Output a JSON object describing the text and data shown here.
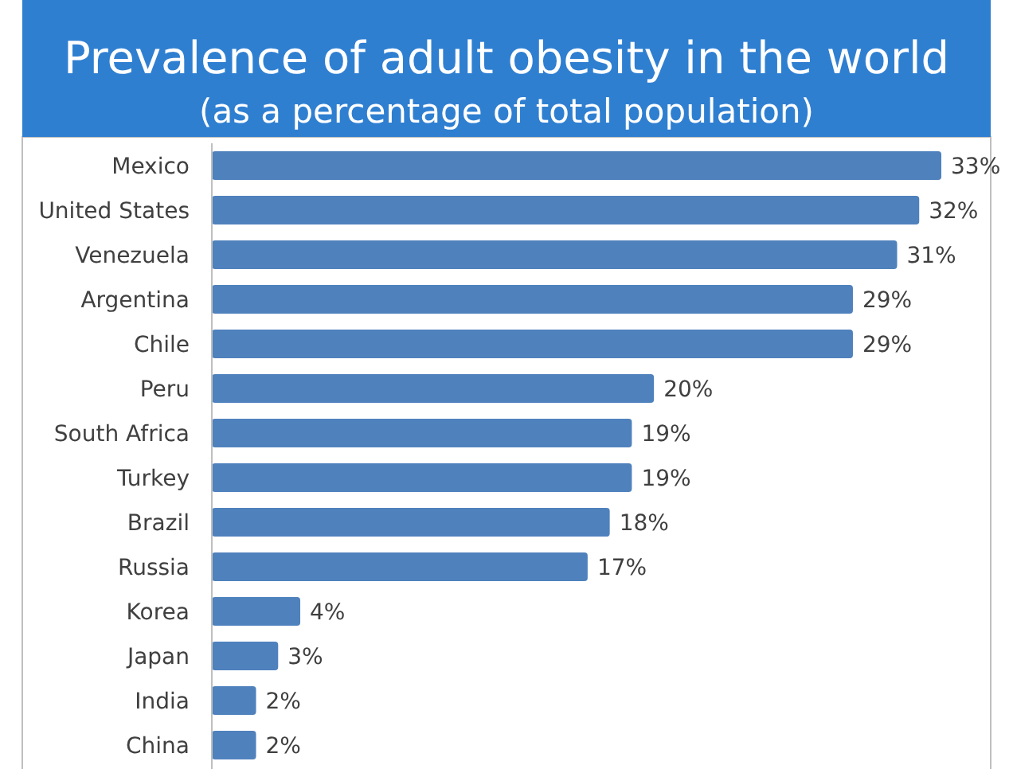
{
  "chart_data": {
    "type": "bar",
    "orientation": "horizontal",
    "title": "Prevalence of adult obesity in the world",
    "subtitle": "(as a percentage of total population)",
    "categories": [
      "Mexico",
      "United States",
      "Venezuela",
      "Argentina",
      "Chile",
      "Peru",
      "South Africa",
      "Turkey",
      "Brazil",
      "Russia",
      "Korea",
      "Japan",
      "India",
      "China"
    ],
    "values": [
      33,
      32,
      31,
      29,
      29,
      20,
      19,
      19,
      18,
      17,
      4,
      3,
      2,
      2
    ],
    "value_labels": [
      "33%",
      "32%",
      "31%",
      "29%",
      "29%",
      "20%",
      "19%",
      "19%",
      "18%",
      "17%",
      "4%",
      "3%",
      "2%",
      "2%"
    ],
    "color": "#4f81bd",
    "tick_labels": "y"
  }
}
